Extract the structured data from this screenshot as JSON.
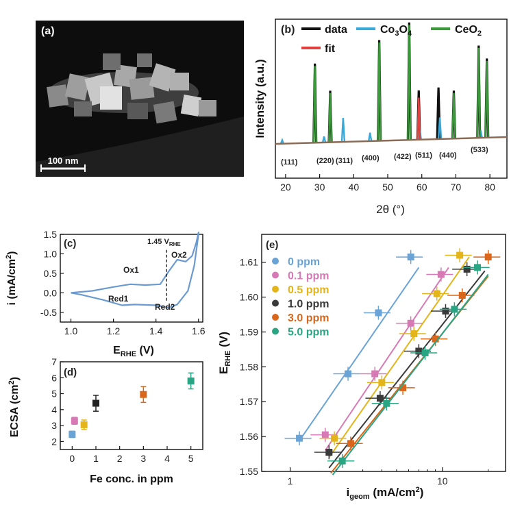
{
  "colors": {
    "data": "#111111",
    "co3o4": "#3aa8d8",
    "ceo2": "#3a9a3a",
    "fit": "#e04040",
    "cv": "#6b9ad0",
    "ppm_0": "#6aa3d6",
    "ppm_01": "#d779b5",
    "ppm_05": "#e3b51a",
    "ppm_10": "#3a3a3a",
    "ppm_30": "#d9661a",
    "ppm_50": "#2aa583"
  },
  "panel_a": {
    "label": "(a)",
    "scale_bar": "100 nm"
  },
  "panel_b": {
    "label": "(b)",
    "legend": {
      "data": "data",
      "co3o4_main": "Co",
      "co3o4_sub": "3",
      "co3o4_o": "O",
      "co3o4_sub2": "4",
      "ceo2": "CeO",
      "ceo2_sub": "2",
      "fit": "fit"
    },
    "hkl": [
      "(111)",
      "(220)",
      "(311)",
      "(400)",
      "(422)",
      "(511)",
      "(440)",
      "(533)"
    ],
    "ylabel": "Intensity (a.u.)",
    "xlabel": "2θ (°)"
  },
  "panel_c": {
    "label": "(c)",
    "annot_v": "1.45 V",
    "annot_v_sub": "RHE",
    "peaks": [
      "Ox1",
      "Ox2",
      "Red1",
      "Red2"
    ],
    "ylabel": "i (mA/cm",
    "ylabel_sup": "2",
    "ylabel_end": ")",
    "xlabel": "E",
    "xlabel_sub": "RHE",
    "xlabel_end": " (V)"
  },
  "panel_d": {
    "label": "(d)",
    "ylabel": "ECSA (cm",
    "ylabel_sup": "2",
    "ylabel_end": ")",
    "xlabel": "Fe conc. in ppm"
  },
  "panel_e": {
    "label": "(e)",
    "ylabel": "E",
    "ylabel_sub": "RHE",
    "ylabel_end": " (V)",
    "xlabel": "i",
    "xlabel_sub": "geom",
    "xlabel_end": " (mA/cm",
    "xlabel_sup": "2",
    "xlabel_end2": ")"
  },
  "chart_data": [
    {
      "panel": "b",
      "type": "line",
      "xlim": [
        17,
        85
      ],
      "x_ticks": [
        "20",
        "30",
        "40",
        "50",
        "60",
        "70",
        "80"
      ],
      "series": [
        {
          "name": "data",
          "peaks": [
            [
              28.6,
              0.66
            ],
            [
              33.1,
              0.43
            ],
            [
              47.5,
              0.84
            ],
            [
              56.3,
              0.98
            ],
            [
              59.1,
              0.41
            ],
            [
              64.9,
              0.43
            ],
            [
              69.4,
              0.4
            ],
            [
              76.7,
              0.77
            ],
            [
              79.1,
              0.66
            ]
          ]
        },
        {
          "name": "Co3O4",
          "peaks": [
            [
              19.0,
              0.03
            ],
            [
              31.3,
              0.05
            ],
            [
              36.9,
              0.2
            ],
            [
              44.8,
              0.07
            ],
            [
              59.4,
              0.09
            ],
            [
              65.3,
              0.18
            ],
            [
              77.3,
              0.06
            ]
          ]
        },
        {
          "name": "CeO2",
          "peaks": [
            [
              28.6,
              0.64
            ],
            [
              33.1,
              0.41
            ],
            [
              47.5,
              0.82
            ],
            [
              56.3,
              0.96
            ],
            [
              59.1,
              0.25
            ],
            [
              69.4,
              0.38
            ],
            [
              76.7,
              0.75
            ],
            [
              79.1,
              0.64
            ]
          ]
        },
        {
          "name": "fit",
          "peaks": [
            [
              59.1,
              0.35
            ]
          ]
        }
      ]
    },
    {
      "panel": "c",
      "type": "line",
      "xlim": [
        0.95,
        1.62
      ],
      "ylim": [
        -0.75,
        1.5
      ],
      "x_ticks": [
        "1.0",
        "1.2",
        "1.4",
        "1.6"
      ],
      "y_ticks": [
        "-0.5",
        "0.0",
        "0.5",
        "1.0",
        "1.5"
      ],
      "upper": [
        [
          1.0,
          0.0
        ],
        [
          1.1,
          0.05
        ],
        [
          1.2,
          0.15
        ],
        [
          1.28,
          0.22
        ],
        [
          1.35,
          0.2
        ],
        [
          1.42,
          0.22
        ],
        [
          1.46,
          0.55
        ],
        [
          1.5,
          0.85
        ],
        [
          1.54,
          0.8
        ],
        [
          1.57,
          0.95
        ],
        [
          1.59,
          1.3
        ],
        [
          1.6,
          1.55
        ]
      ],
      "lower": [
        [
          1.6,
          1.5
        ],
        [
          1.58,
          0.7
        ],
        [
          1.55,
          0.05
        ],
        [
          1.5,
          -0.3
        ],
        [
          1.46,
          -0.38
        ],
        [
          1.4,
          -0.32
        ],
        [
          1.3,
          -0.3
        ],
        [
          1.24,
          -0.32
        ],
        [
          1.15,
          -0.18
        ],
        [
          1.05,
          -0.05
        ],
        [
          1.0,
          0.0
        ]
      ],
      "marker_x": 1.45
    },
    {
      "panel": "d",
      "type": "scatter",
      "xlim": [
        -0.5,
        5.5
      ],
      "ylim": [
        1.5,
        7
      ],
      "x_ticks": [
        "0",
        "1",
        "2",
        "3",
        "4",
        "5"
      ],
      "y_ticks": [
        "2",
        "3",
        "4",
        "5",
        "6",
        "7"
      ],
      "points": [
        {
          "x": 0,
          "y": 2.45,
          "err": 0.2,
          "color": "#6aa3d6"
        },
        {
          "x": 0.1,
          "y": 3.3,
          "err": 0.22,
          "color": "#d779b5"
        },
        {
          "x": 0.5,
          "y": 3.05,
          "err": 0.3,
          "color": "#e3b51a"
        },
        {
          "x": 1.0,
          "y": 4.4,
          "err": 0.5,
          "color": "#222222"
        },
        {
          "x": 3.0,
          "y": 4.95,
          "err": 0.5,
          "color": "#d9661a"
        },
        {
          "x": 5.0,
          "y": 5.8,
          "err": 0.5,
          "color": "#2aa583"
        }
      ]
    },
    {
      "panel": "e",
      "type": "scatter",
      "x_log": true,
      "xlim": [
        0.65,
        26
      ],
      "ylim": [
        1.55,
        1.618
      ],
      "x_ticks": [
        "1",
        "10"
      ],
      "y_ticks": [
        "1.55",
        "1.56",
        "1.57",
        "1.58",
        "1.59",
        "1.60",
        "1.61"
      ],
      "series": [
        {
          "name": "0 ppm",
          "color": "#6aa3d6",
          "points": [
            [
              1.15,
              1.5595
            ],
            [
              2.4,
              1.578
            ],
            [
              3.8,
              1.5955
            ],
            [
              6.2,
              1.6115
            ]
          ],
          "fit": [
            [
              1.2,
              1.56
            ],
            [
              7.0,
              1.6085
            ]
          ]
        },
        {
          "name": "0.1 ppm",
          "color": "#d779b5",
          "points": [
            [
              1.7,
              1.5605
            ],
            [
              3.6,
              1.578
            ],
            [
              6.2,
              1.5925
            ],
            [
              9.8,
              1.6065
            ]
          ],
          "fit": [
            [
              1.7,
              1.556
            ],
            [
              11,
              1.6085
            ]
          ]
        },
        {
          "name": "0.5 ppm",
          "color": "#e3b51a",
          "points": [
            [
              1.95,
              1.5595
            ],
            [
              4.0,
              1.5755
            ],
            [
              6.5,
              1.5895
            ],
            [
              9.2,
              1.601
            ],
            [
              13,
              1.612
            ]
          ],
          "fit": [
            [
              1.8,
              1.554
            ],
            [
              15,
              1.6115
            ]
          ]
        },
        {
          "name": "1.0 ppm",
          "color": "#3a3a3a",
          "points": [
            [
              1.8,
              1.5555
            ],
            [
              3.9,
              1.571
            ],
            [
              7.0,
              1.5845
            ],
            [
              10.5,
              1.596
            ],
            [
              14.5,
              1.608
            ]
          ],
          "fit": [
            [
              1.8,
              1.551
            ],
            [
              19,
              1.6075
            ]
          ]
        },
        {
          "name": "3.0 ppm",
          "color": "#d9661a",
          "points": [
            [
              2.5,
              1.558
            ],
            [
              5.5,
              1.574
            ],
            [
              9.0,
              1.588
            ],
            [
              13.5,
              1.6005
            ],
            [
              20,
              1.6115
            ]
          ],
          "fit": [
            [
              1.85,
              1.5495
            ],
            [
              20,
              1.606
            ]
          ]
        },
        {
          "name": "5.0 ppm",
          "color": "#2aa583",
          "points": [
            [
              2.2,
              1.553
            ],
            [
              4.3,
              1.5695
            ],
            [
              7.7,
              1.584
            ],
            [
              12,
              1.5965
            ],
            [
              17,
              1.6085
            ]
          ],
          "fit": [
            [
              1.9,
              1.549
            ],
            [
              20,
              1.6065
            ]
          ]
        }
      ]
    }
  ]
}
